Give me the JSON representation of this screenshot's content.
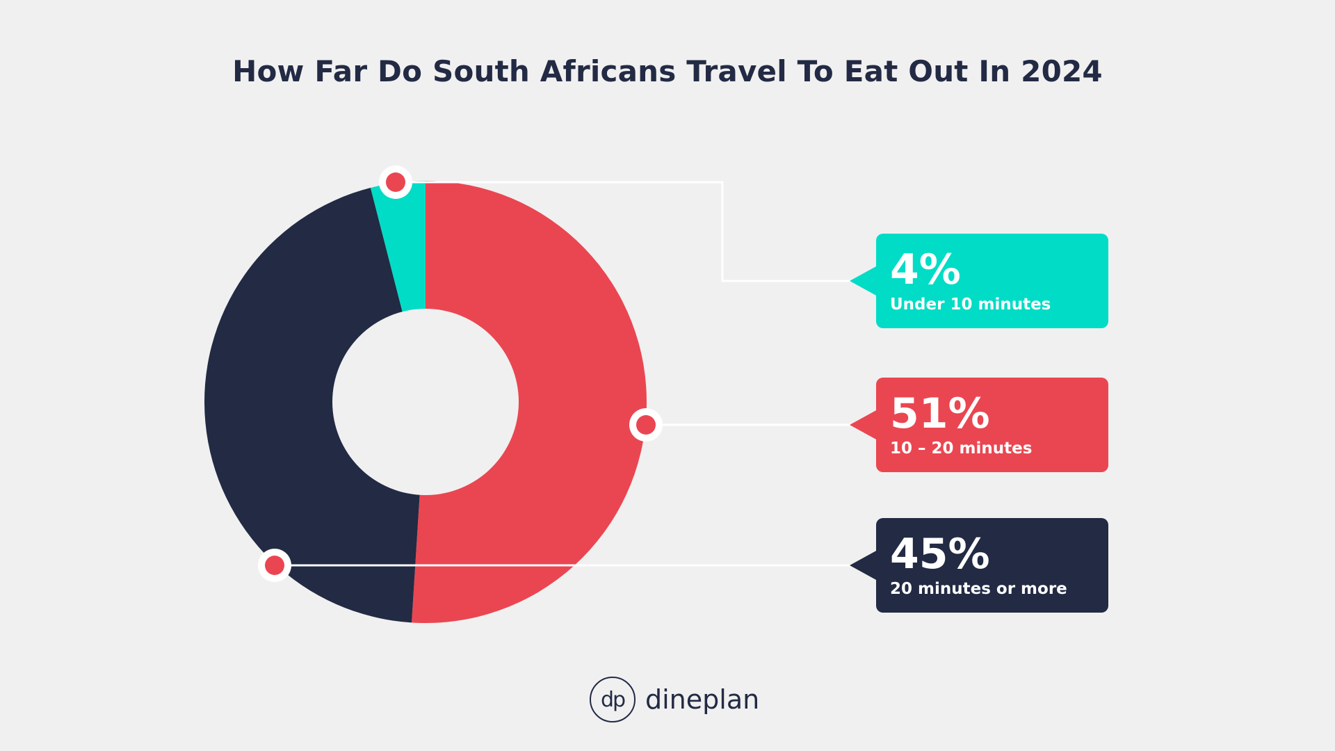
{
  "chart_data": {
    "type": "pie",
    "title": "How Far Do South Africans Travel To Eat Out In 2024",
    "slices": [
      {
        "label": "Under 10 minutes",
        "value": 4,
        "value_label": "4%",
        "color": "#00dcc6"
      },
      {
        "label": "10 – 20 minutes",
        "value": 51,
        "value_label": "51%",
        "color": "#ea4651"
      },
      {
        "label": "20 minutes or more",
        "value": 45,
        "value_label": "45%",
        "color": "#222a44"
      }
    ]
  },
  "colors": {
    "background": "#f0f0f0",
    "marker": "#ea4651",
    "connector": "#ffffff",
    "text_dark": "#222a44"
  },
  "brand": {
    "mark": "dp",
    "name": "dineplan"
  }
}
